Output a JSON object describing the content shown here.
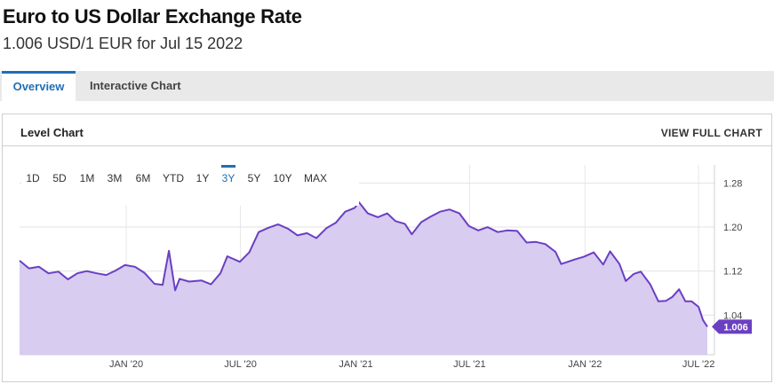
{
  "header": {
    "title": "Euro to US Dollar Exchange Rate",
    "subtitle": "1.006 USD/1 EUR for Jul 15 2022"
  },
  "tabs": [
    {
      "label": "Overview",
      "active": true
    },
    {
      "label": "Interactive Chart",
      "active": false
    }
  ],
  "panel": {
    "title": "Level Chart",
    "view_full": "VIEW FULL CHART"
  },
  "ranges": {
    "items": [
      "1D",
      "5D",
      "1M",
      "3M",
      "6M",
      "YTD",
      "1Y",
      "3Y",
      "5Y",
      "10Y",
      "MAX"
    ],
    "active": "3Y"
  },
  "colors": {
    "line": "#6b3fc2",
    "fill": "#d8ccf0",
    "accent": "#1f6fb5",
    "badge": "#6b3fc2"
  },
  "chart_data": {
    "type": "area",
    "title": "",
    "xlabel": "",
    "ylabel": "",
    "ylim": [
      0.955,
      1.3
    ],
    "x_range": [
      "2019-07-15",
      "2022-07-15"
    ],
    "yticks": [
      1.28,
      1.2,
      1.12,
      1.04
    ],
    "ytick_labels": [
      "1.28",
      "1.20",
      "1.12",
      "1.04"
    ],
    "xticks": [
      "2020-01-01",
      "2020-07-01",
      "2021-01-01",
      "2021-07-01",
      "2022-01-01",
      "2022-07-01"
    ],
    "xtick_labels": [
      "JAN '20",
      "JUL '20",
      "JAN '21",
      "JUL '21",
      "JAN '22",
      "JUL '22"
    ],
    "last_value_label": "1.006",
    "grid": true,
    "series": [
      {
        "values": [
          [
            "2019-07-15",
            1.126
          ],
          [
            "2019-07-30",
            1.112
          ],
          [
            "2019-08-15",
            1.115
          ],
          [
            "2019-08-30",
            1.103
          ],
          [
            "2019-09-15",
            1.106
          ],
          [
            "2019-09-30",
            1.092
          ],
          [
            "2019-10-15",
            1.103
          ],
          [
            "2019-10-30",
            1.107
          ],
          [
            "2019-11-15",
            1.103
          ],
          [
            "2019-11-30",
            1.1
          ],
          [
            "2019-12-15",
            1.108
          ],
          [
            "2019-12-30",
            1.118
          ],
          [
            "2020-01-15",
            1.115
          ],
          [
            "2020-01-30",
            1.104
          ],
          [
            "2020-02-15",
            1.084
          ],
          [
            "2020-02-28",
            1.082
          ],
          [
            "2020-03-09",
            1.144
          ],
          [
            "2020-03-19",
            1.072
          ],
          [
            "2020-03-26",
            1.093
          ],
          [
            "2020-04-10",
            1.088
          ],
          [
            "2020-04-30",
            1.09
          ],
          [
            "2020-05-15",
            1.083
          ],
          [
            "2020-05-30",
            1.103
          ],
          [
            "2020-06-10",
            1.134
          ],
          [
            "2020-06-30",
            1.124
          ],
          [
            "2020-07-15",
            1.141
          ],
          [
            "2020-07-30",
            1.178
          ],
          [
            "2020-08-15",
            1.186
          ],
          [
            "2020-08-30",
            1.192
          ],
          [
            "2020-09-15",
            1.184
          ],
          [
            "2020-09-30",
            1.172
          ],
          [
            "2020-10-15",
            1.176
          ],
          [
            "2020-10-30",
            1.167
          ],
          [
            "2020-11-15",
            1.185
          ],
          [
            "2020-11-30",
            1.195
          ],
          [
            "2020-12-15",
            1.215
          ],
          [
            "2020-12-30",
            1.222
          ],
          [
            "2021-01-06",
            1.232
          ],
          [
            "2021-01-20",
            1.212
          ],
          [
            "2021-02-05",
            1.205
          ],
          [
            "2021-02-20",
            1.212
          ],
          [
            "2021-03-05",
            1.198
          ],
          [
            "2021-03-20",
            1.193
          ],
          [
            "2021-03-31",
            1.174
          ],
          [
            "2021-04-15",
            1.196
          ],
          [
            "2021-04-30",
            1.206
          ],
          [
            "2021-05-15",
            1.215
          ],
          [
            "2021-05-30",
            1.219
          ],
          [
            "2021-06-15",
            1.212
          ],
          [
            "2021-06-30",
            1.189
          ],
          [
            "2021-07-15",
            1.181
          ],
          [
            "2021-07-30",
            1.187
          ],
          [
            "2021-08-15",
            1.178
          ],
          [
            "2021-08-30",
            1.181
          ],
          [
            "2021-09-15",
            1.18
          ],
          [
            "2021-09-30",
            1.159
          ],
          [
            "2021-10-15",
            1.16
          ],
          [
            "2021-10-30",
            1.156
          ],
          [
            "2021-11-15",
            1.142
          ],
          [
            "2021-11-24",
            1.12
          ],
          [
            "2021-12-15",
            1.128
          ],
          [
            "2021-12-30",
            1.133
          ],
          [
            "2022-01-15",
            1.141
          ],
          [
            "2022-01-30",
            1.119
          ],
          [
            "2022-02-10",
            1.143
          ],
          [
            "2022-02-25",
            1.12
          ],
          [
            "2022-03-07",
            1.089
          ],
          [
            "2022-03-20",
            1.102
          ],
          [
            "2022-03-31",
            1.106
          ],
          [
            "2022-04-15",
            1.083
          ],
          [
            "2022-04-28",
            1.052
          ],
          [
            "2022-05-10",
            1.053
          ],
          [
            "2022-05-20",
            1.06
          ],
          [
            "2022-05-31",
            1.074
          ],
          [
            "2022-06-10",
            1.052
          ],
          [
            "2022-06-20",
            1.052
          ],
          [
            "2022-07-01",
            1.042
          ],
          [
            "2022-07-08",
            1.018
          ],
          [
            "2022-07-15",
            1.006
          ]
        ]
      }
    ]
  }
}
